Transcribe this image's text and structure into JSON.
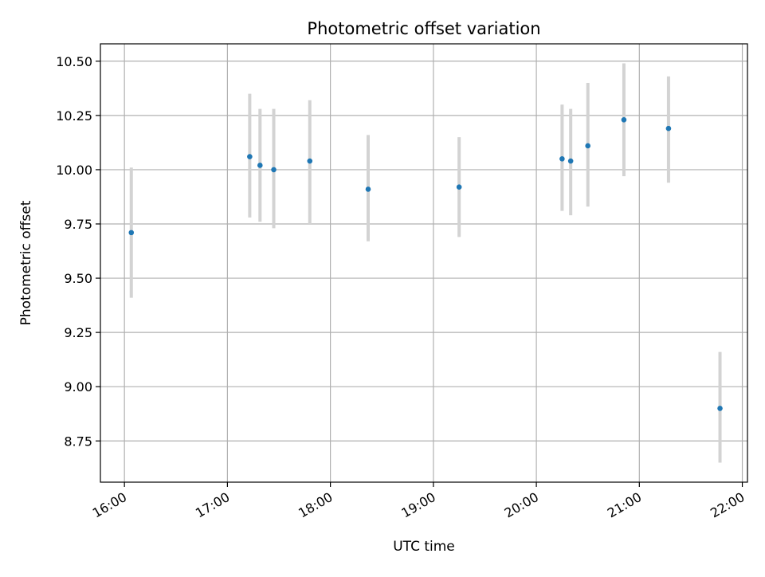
{
  "chart_data": {
    "type": "scatter",
    "title": "Photometric offset variation",
    "xlabel": "UTC time",
    "ylabel": "Photometric offset",
    "x_axis": {
      "kind": "time",
      "range": [
        "15:46",
        "22:03"
      ],
      "ticks": [
        "16:00",
        "17:00",
        "18:00",
        "19:00",
        "20:00",
        "21:00",
        "22:00"
      ]
    },
    "y_axis": {
      "range": [
        8.56,
        10.58
      ],
      "ticks": [
        8.75,
        9.0,
        9.25,
        9.5,
        9.75,
        10.0,
        10.25,
        10.5
      ],
      "tick_labels": [
        "8.75",
        "9.00",
        "9.25",
        "9.50",
        "9.75",
        "10.00",
        "10.25",
        "10.50"
      ]
    },
    "grid": true,
    "legend": "none",
    "colors": {
      "marker": "#1f77b4",
      "errorbar": "#d3d3d3",
      "grid": "#b0b0b0"
    },
    "points": [
      {
        "time": "16:04",
        "y": 9.71,
        "ylow": 9.41,
        "yhigh": 10.01
      },
      {
        "time": "17:13",
        "y": 10.06,
        "ylow": 9.78,
        "yhigh": 10.35
      },
      {
        "time": "17:19",
        "y": 10.02,
        "ylow": 9.76,
        "yhigh": 10.28
      },
      {
        "time": "17:27",
        "y": 10.0,
        "ylow": 9.73,
        "yhigh": 10.28
      },
      {
        "time": "17:48",
        "y": 10.04,
        "ylow": 9.75,
        "yhigh": 10.32
      },
      {
        "time": "18:22",
        "y": 9.91,
        "ylow": 9.67,
        "yhigh": 10.16
      },
      {
        "time": "19:15",
        "y": 9.92,
        "ylow": 9.69,
        "yhigh": 10.15
      },
      {
        "time": "20:15",
        "y": 10.05,
        "ylow": 9.81,
        "yhigh": 10.3
      },
      {
        "time": "20:20",
        "y": 10.04,
        "ylow": 9.79,
        "yhigh": 10.28
      },
      {
        "time": "20:30",
        "y": 10.11,
        "ylow": 9.83,
        "yhigh": 10.4
      },
      {
        "time": "20:51",
        "y": 10.23,
        "ylow": 9.97,
        "yhigh": 10.49
      },
      {
        "time": "21:17",
        "y": 10.19,
        "ylow": 9.94,
        "yhigh": 10.43
      },
      {
        "time": "21:47",
        "y": 8.9,
        "ylow": 8.65,
        "yhigh": 9.16
      }
    ]
  }
}
